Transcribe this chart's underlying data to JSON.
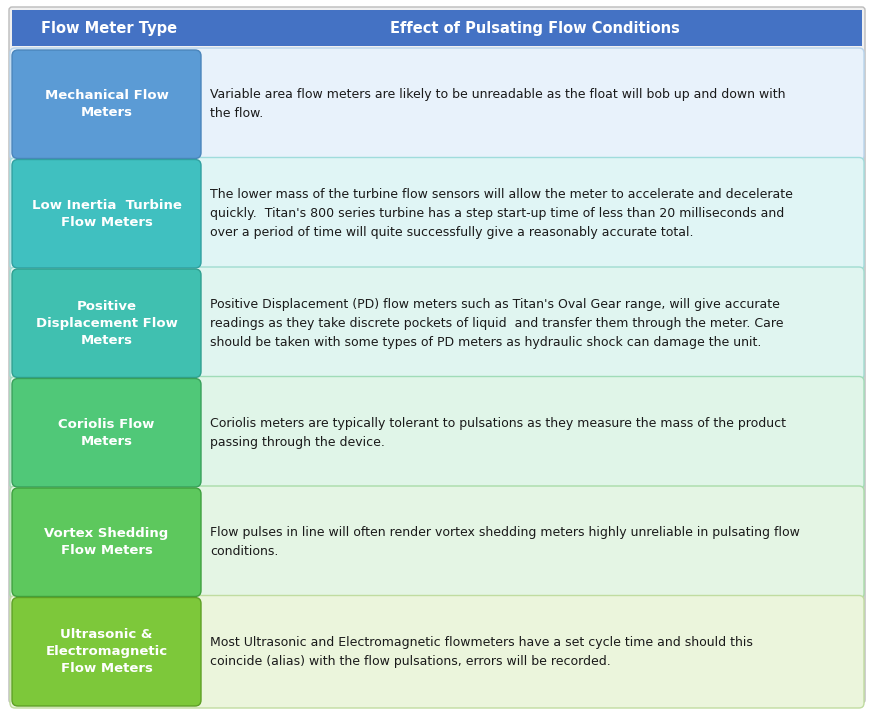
{
  "title_left": "Flow Meter Type",
  "title_right": "Effect of Pulsating Flow Conditions",
  "header_bg": "#4472C4",
  "header_text_color": "#FFFFFF",
  "background_color": "#FFFFFF",
  "outer_border_color": "#AAAAAA",
  "rows": [
    {
      "label": "Mechanical Flow\nMeters",
      "label_bg": "#5B9BD5",
      "label_border": "#4a85bb",
      "row_bg": "#E8F2FB",
      "row_border": "#B8D4EC",
      "description": "Variable area flow meters are likely to be unreadable as the float will bob up and down with\nthe flow."
    },
    {
      "label": "Low Inertia  Turbine\nFlow Meters",
      "label_bg": "#40C0C0",
      "label_border": "#30A0A0",
      "row_bg": "#E0F5F5",
      "row_border": "#A0DCDC",
      "description": "The lower mass of the turbine flow sensors will allow the meter to accelerate and decelerate\nquickly.  Titan's 800 series turbine has a step start-up time of less than 20 milliseconds and\nover a period of time will quite successfully give a reasonably accurate total."
    },
    {
      "label": "Positive\nDisplacement Flow\nMeters",
      "label_bg": "#40C0B0",
      "label_border": "#30A090",
      "row_bg": "#E0F5F0",
      "row_border": "#A0DCd0",
      "description": "Positive Displacement (PD) flow meters such as Titan's Oval Gear range, will give accurate\nreadings as they take discrete pockets of liquid  and transfer them through the meter. Care\nshould be taken with some types of PD meters as hydraulic shock can damage the unit."
    },
    {
      "label": "Coriolis Flow\nMeters",
      "label_bg": "#50C878",
      "label_border": "#38A05A",
      "row_bg": "#E0F5E8",
      "row_border": "#A0DcB8",
      "description": "Coriolis meters are typically tolerant to pulsations as they measure the mass of the product\npassing through the device."
    },
    {
      "label": "Vortex Shedding\nFlow Meters",
      "label_bg": "#5DC85D",
      "label_border": "#3EA03E",
      "row_bg": "#E4F5E4",
      "row_border": "#A8DCA8",
      "description": "Flow pulses in line will often render vortex shedding meters highly unreliable in pulsating flow\nconditions."
    },
    {
      "label": "Ultrasonic &\nElectromagnetic\nFlow Meters",
      "label_bg": "#7DC83A",
      "label_border": "#5EA025",
      "row_bg": "#EBF5DC",
      "row_border": "#C0DCA0",
      "description": "Most Ultrasonic and Electromagnetic flowmeters have a set cycle time and should this\ncoincide (alias) with the flow pulsations, errors will be recorded."
    }
  ]
}
